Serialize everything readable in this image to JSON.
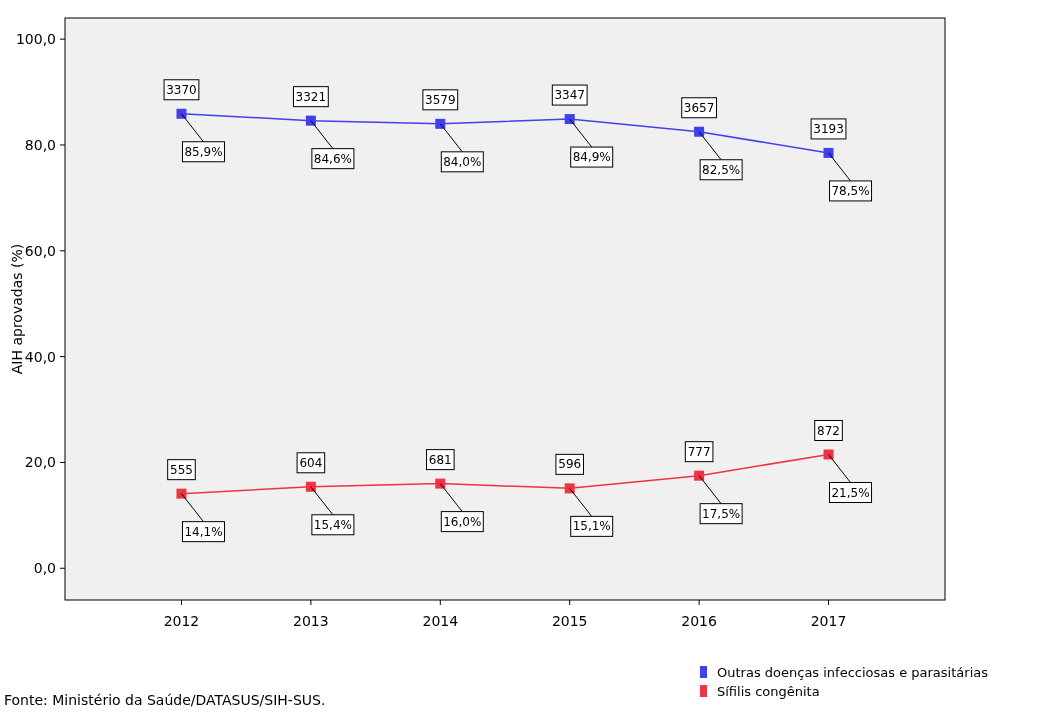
{
  "chart_data": {
    "type": "line",
    "ylabel": "AIH aprovadas (%)",
    "categories": [
      "2012",
      "2013",
      "2014",
      "2015",
      "2016",
      "2017"
    ],
    "series": [
      {
        "name": "Outras doenças infecciosas e parasitárias",
        "color": "#4040ee",
        "values": [
          85.9,
          84.6,
          84.0,
          84.9,
          82.5,
          78.5
        ],
        "value_labels": [
          "85,9%",
          "84,6%",
          "84,0%",
          "84,9%",
          "82,5%",
          "78,5%"
        ]
      },
      {
        "name": "Sífilis congênita",
        "color": "#ee3344",
        "values": [
          14.1,
          15.4,
          16.0,
          15.1,
          17.5,
          21.5
        ],
        "value_labels": [
          "14,1%",
          "15,4%",
          "16,0%",
          "15,1%",
          "17,5%",
          "21,5%"
        ]
      }
    ],
    "ylim": [
      -6,
      104
    ],
    "yticks": [
      {
        "value": 0,
        "label": "0,0"
      },
      {
        "value": 20,
        "label": "20,0"
      },
      {
        "value": 40,
        "label": "40,0"
      },
      {
        "value": 60,
        "label": "60,0"
      },
      {
        "value": 80,
        "label": "80,0"
      },
      {
        "value": 100,
        "label": "100,0"
      }
    ],
    "marker": "square",
    "grid": false,
    "legend": "bottom right",
    "annotations": [
      {
        "text": "3370",
        "x": "2012",
        "y": 85.9
      },
      {
        "text": "3321",
        "x": "2013",
        "y": 84.6
      },
      {
        "text": "3579",
        "x": "2014",
        "y": 84.0
      },
      {
        "text": "3347",
        "x": "2015",
        "y": 84.9
      },
      {
        "text": "3657",
        "x": "2016",
        "y": 82.5
      },
      {
        "text": "3193",
        "x": "2017",
        "y": 78.5
      },
      {
        "text": "555",
        "x": "2012",
        "y": 14.1
      },
      {
        "text": "604",
        "x": "2013",
        "y": 15.4
      },
      {
        "text": "681",
        "x": "2014",
        "y": 16.0
      },
      {
        "text": "596",
        "x": "2015",
        "y": 15.1
      },
      {
        "text": "777",
        "x": "2016",
        "y": 17.5
      },
      {
        "text": "872",
        "x": "2017",
        "y": 21.5
      },
      "Fonte: Ministério da Saúde/DATASUS/SIH-SUS."
    ]
  }
}
